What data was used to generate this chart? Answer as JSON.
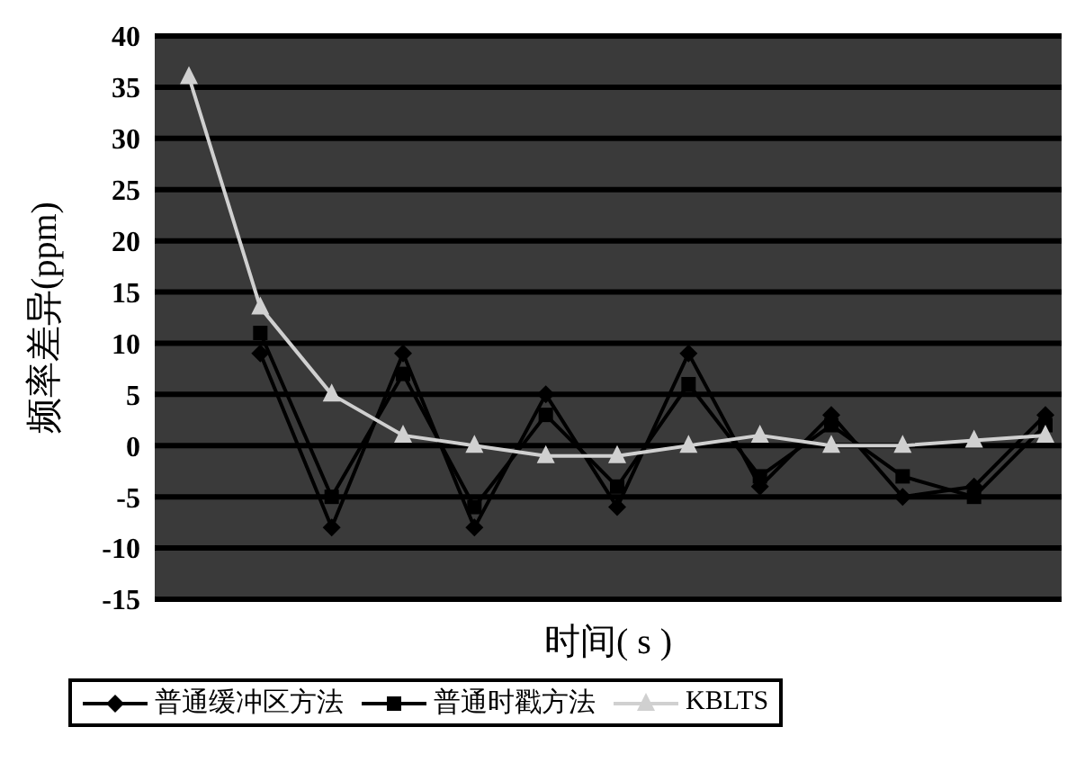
{
  "chart_data": {
    "type": "line",
    "xlabel": "时间( s )",
    "ylabel": "频率差异(ppm)",
    "categories": [
      null,
      null,
      null,
      null,
      null,
      null,
      null,
      null,
      null,
      null,
      null,
      null,
      null
    ],
    "series": [
      {
        "name": "普通缓冲区方法",
        "color": "#000000",
        "marker": "diamond",
        "values": [
          null,
          9,
          -8,
          9,
          -8,
          5,
          -6,
          9,
          -4,
          3,
          -5,
          -4,
          3
        ]
      },
      {
        "name": "普通时戳方法",
        "color": "#000000",
        "marker": "square",
        "values": [
          null,
          11,
          -5,
          7,
          -6,
          3,
          -4,
          6,
          -3,
          2,
          -3,
          -5,
          2
        ]
      },
      {
        "name": "KBLTS",
        "color": "#d0d0d0",
        "marker": "triangle",
        "values": [
          36,
          13.5,
          5,
          1,
          0,
          -1,
          -1,
          0,
          1,
          0,
          0,
          0.5,
          1
        ]
      }
    ],
    "ylim": [
      -15,
      40
    ],
    "yticks": [
      -15,
      -10,
      -5,
      0,
      5,
      10,
      15,
      20,
      25,
      30,
      35,
      40
    ],
    "grid": "y",
    "legend": "bottom",
    "tick_labels": "y"
  }
}
